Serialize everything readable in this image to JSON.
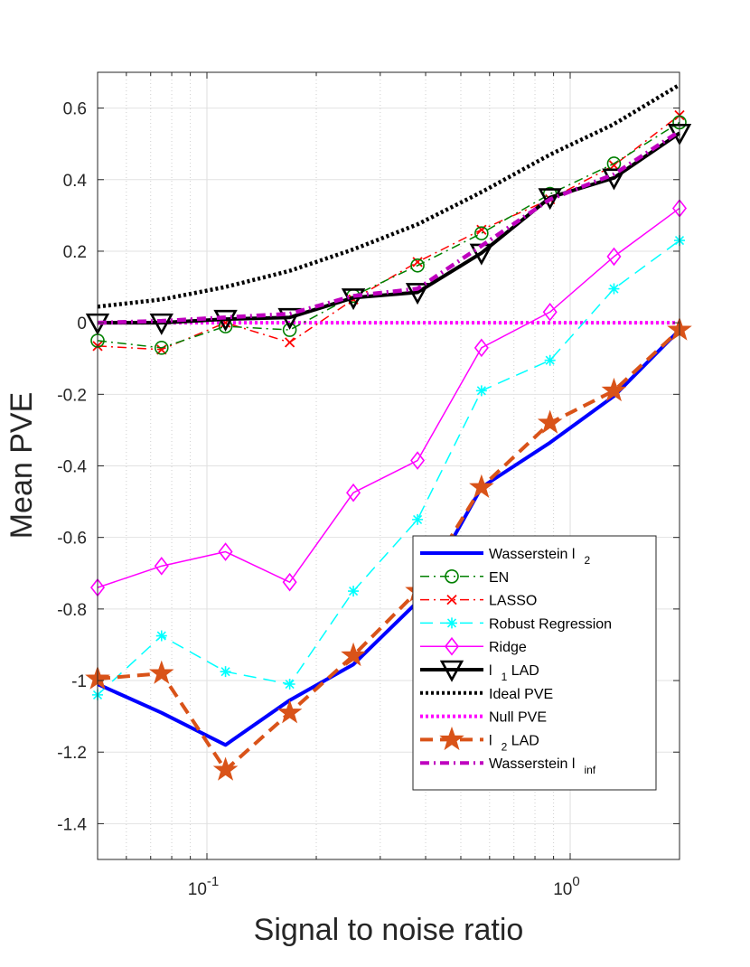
{
  "chart_data": {
    "type": "line",
    "title": "",
    "xlabel": "Signal to noise ratio",
    "ylabel": "Mean PVE",
    "xscale": "log",
    "xlim": [
      0.05,
      2.0
    ],
    "ylim": [
      -1.5,
      0.7
    ],
    "yticks": [
      0.6,
      0.4,
      0.2,
      0,
      -0.2,
      -0.4,
      -0.6,
      -0.8,
      -1,
      -1.2,
      -1.4
    ],
    "ytick_labels": [
      "0.6",
      "0.4",
      "0.2",
      "0",
      "-0.2",
      "-0.4",
      "-0.6",
      "-0.8",
      "-1",
      "-1.2",
      "-1.4"
    ],
    "xticks": [
      {
        "value": 0.1,
        "base": "10",
        "exp": "-1"
      },
      {
        "value": 1,
        "base": "10",
        "exp": "0"
      }
    ],
    "grid": true,
    "legend_location": "bottom-right",
    "x": [
      0.05,
      0.075,
      0.1125,
      0.169,
      0.253,
      0.38,
      0.57,
      0.88,
      1.32,
      2.0
    ],
    "series": [
      {
        "name": "Wasserstein l",
        "sub": "2",
        "color": "#0000ff",
        "dash": "solid",
        "marker": "none",
        "width": 4,
        "values": [
          -1.01,
          -1.09,
          -1.18,
          -1.055,
          -0.955,
          -0.78,
          -0.46,
          -0.335,
          -0.205,
          -0.02
        ]
      },
      {
        "name": "EN",
        "sub": "",
        "color": "#008000",
        "dash": "dashdot",
        "marker": "circle",
        "width": 1.5,
        "values": [
          -0.05,
          -0.07,
          -0.01,
          -0.02,
          0.075,
          0.16,
          0.25,
          0.36,
          0.445,
          0.56
        ]
      },
      {
        "name": "LASSO",
        "sub": "",
        "color": "#ff0000",
        "dash": "dashdot",
        "marker": "x",
        "width": 1.5,
        "values": [
          -0.065,
          -0.075,
          0.0,
          -0.055,
          0.065,
          0.17,
          0.26,
          0.345,
          0.44,
          0.58
        ]
      },
      {
        "name": "Robust Regression",
        "sub": "",
        "color": "#00ffff",
        "dash": "dashed",
        "marker": "asterisk",
        "width": 1.5,
        "values": [
          -1.04,
          -0.875,
          -0.975,
          -1.01,
          -0.75,
          -0.55,
          -0.19,
          -0.105,
          0.095,
          0.23
        ]
      },
      {
        "name": "Ridge",
        "sub": "",
        "color": "#ff00ff",
        "dash": "solid",
        "marker": "diamond",
        "width": 1.5,
        "values": [
          -0.74,
          -0.68,
          -0.64,
          -0.725,
          -0.475,
          -0.385,
          -0.07,
          0.03,
          0.185,
          0.32
        ]
      },
      {
        "name": "l",
        "sub": "1",
        "suffix": " LAD",
        "color": "#000000",
        "dash": "solid",
        "marker": "triangle-down",
        "width": 4,
        "values": [
          0.0,
          0.0,
          0.01,
          0.015,
          0.07,
          0.085,
          0.195,
          0.35,
          0.405,
          0.53
        ]
      },
      {
        "name": "Ideal PVE",
        "sub": "",
        "color": "#000000",
        "dash": "dotted",
        "marker": "none",
        "width": 4.5,
        "smooth": true,
        "values": [
          0.045,
          0.065,
          0.1,
          0.145,
          0.205,
          0.275,
          0.365,
          0.47,
          0.555,
          0.665
        ]
      },
      {
        "name": "Null PVE",
        "sub": "",
        "color": "#ff00ff",
        "dash": "dotted",
        "marker": "none",
        "width": 4,
        "values": [
          0,
          0,
          0,
          0,
          0,
          0,
          0,
          0,
          0,
          0
        ]
      },
      {
        "name": "l",
        "sub": "2",
        "suffix": " LAD",
        "color": "#d95319",
        "dash": "dashed",
        "marker": "star",
        "width": 4,
        "values": [
          -0.995,
          -0.98,
          -1.25,
          -1.09,
          -0.93,
          -0.75,
          -0.46,
          -0.28,
          -0.19,
          -0.02
        ]
      },
      {
        "name": "Wasserstein l",
        "sub": "inf",
        "color": "#bf00bf",
        "dash": "dashdot",
        "marker": "none",
        "width": 4.5,
        "values": [
          0.0,
          0.005,
          0.015,
          0.025,
          0.075,
          0.095,
          0.215,
          0.345,
          0.415,
          0.535
        ]
      }
    ]
  }
}
